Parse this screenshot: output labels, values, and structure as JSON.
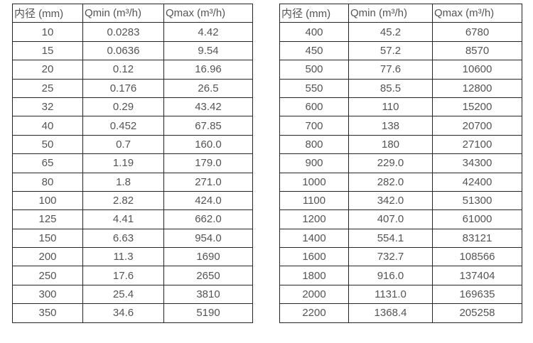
{
  "page": {
    "background": "#ffffff",
    "border_color": "#262626",
    "text_color": "#545454"
  },
  "tables": [
    {
      "id": "flow-range-table-small-diameters",
      "headers": [
        "内径 (mm)",
        "Qmin (m³/h)",
        "Qmax (m³/h)"
      ],
      "rows": [
        [
          "10",
          "0.0283",
          "4.42"
        ],
        [
          "15",
          "0.0636",
          "9.54"
        ],
        [
          "20",
          "0.12",
          "16.96"
        ],
        [
          "25",
          "0.176",
          "26.5"
        ],
        [
          "32",
          "0.29",
          "43.42"
        ],
        [
          "40",
          "0.452",
          "67.85"
        ],
        [
          "50",
          "0.7",
          "160.0"
        ],
        [
          "65",
          "1.19",
          "179.0"
        ],
        [
          "80",
          "1.8",
          "271.0"
        ],
        [
          "100",
          "2.82",
          "424.0"
        ],
        [
          "125",
          "4.41",
          "662.0"
        ],
        [
          "150",
          "6.63",
          "954.0"
        ],
        [
          "200",
          "11.3",
          "1690"
        ],
        [
          "250",
          "17.6",
          "2650"
        ],
        [
          "300",
          "25.4",
          "3810"
        ],
        [
          "350",
          "34.6",
          "5190"
        ]
      ]
    },
    {
      "id": "flow-range-table-large-diameters",
      "headers": [
        "内径 (mm)",
        "Qmin (m³/h)",
        "Qmax (m³/h)"
      ],
      "rows": [
        [
          "400",
          "45.2",
          "6780"
        ],
        [
          "450",
          "57.2",
          "8570"
        ],
        [
          "500",
          "77.6",
          "10600"
        ],
        [
          "550",
          "85.5",
          "12800"
        ],
        [
          "600",
          "110",
          "15200"
        ],
        [
          "700",
          "138",
          "20700"
        ],
        [
          "800",
          "180",
          "27100"
        ],
        [
          "900",
          "229.0",
          "34300"
        ],
        [
          "1000",
          "282.0",
          "42400"
        ],
        [
          "1100",
          "342.0",
          "51300"
        ],
        [
          "1200",
          "407.0",
          "61000"
        ],
        [
          "1400",
          "554.1",
          "83121"
        ],
        [
          "1600",
          "732.7",
          "108566"
        ],
        [
          "1800",
          "916.0",
          "137404"
        ],
        [
          "2000",
          "1131.0",
          "169635"
        ],
        [
          "2200",
          "1368.4",
          "205258"
        ]
      ]
    }
  ]
}
